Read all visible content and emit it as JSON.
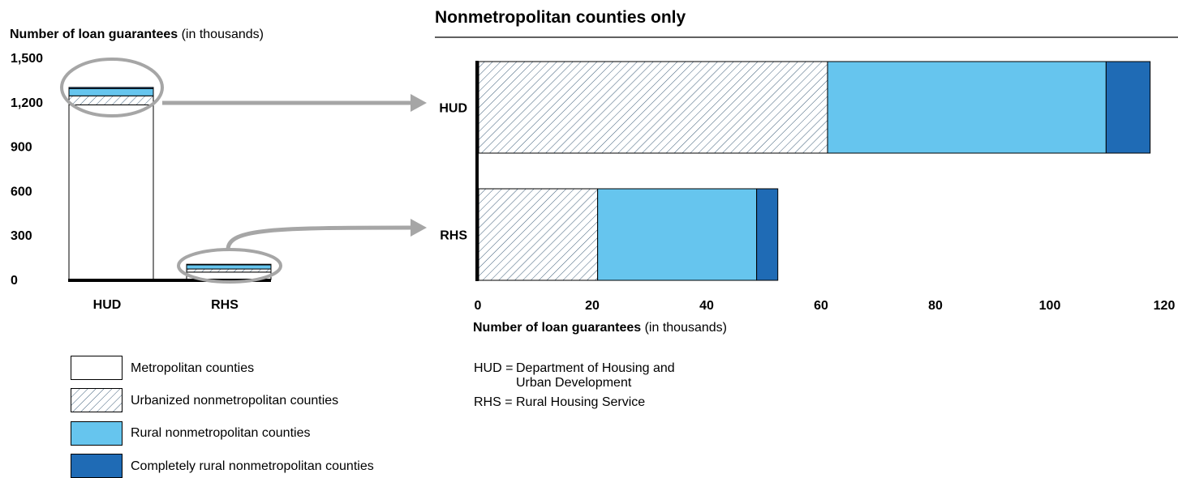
{
  "colors": {
    "metropolitan": "#ffffff",
    "rural": "#66c5ee",
    "completely_rural": "#1f6bb5",
    "highlight_ellipse": "#a6a6a6",
    "hatch_line": "#3f5f7a"
  },
  "left_chart": {
    "ylabel_bold": "Number of loan guarantees",
    "ylabel_rest": " (in thousands)"
  },
  "right_chart": {
    "title": "Nonmetropolitan counties only",
    "xlabel_bold": "Number of loan guarantees",
    "xlabel_rest": " (in thousands)"
  },
  "chart_data": [
    {
      "type": "bar",
      "stacked": true,
      "orientation": "vertical",
      "categories": [
        "HUD",
        "RHS"
      ],
      "series": [
        {
          "name": "Metropolitan counties",
          "values": [
            1180,
            50
          ]
        },
        {
          "name": "Urbanized nonmetropolitan counties",
          "values": [
            61,
            21
          ]
        },
        {
          "name": "Rural nonmetropolitan counties",
          "values": [
            49,
            28
          ]
        },
        {
          "name": "Completely rural nonmetropolitan counties",
          "values": [
            8,
            4
          ]
        }
      ],
      "ylim": [
        0,
        1500
      ],
      "yticks": [
        "0",
        "300",
        "600",
        "900",
        "1,200",
        "1,500"
      ],
      "ytick_values": [
        0,
        300,
        600,
        900,
        1200,
        1500
      ]
    },
    {
      "type": "bar",
      "stacked": true,
      "orientation": "horizontal",
      "categories": [
        "HUD",
        "RHS"
      ],
      "series": [
        {
          "name": "Urbanized nonmetropolitan counties",
          "values": [
            61,
            20.8
          ]
        },
        {
          "name": "Rural nonmetropolitan counties",
          "values": [
            48.7,
            27.8
          ]
        },
        {
          "name": "Completely rural nonmetropolitan counties",
          "values": [
            7.7,
            3.7
          ]
        }
      ],
      "xlim": [
        0,
        120
      ],
      "xticks": [
        "0",
        "20",
        "40",
        "60",
        "80",
        "100",
        "120"
      ],
      "xtick_values": [
        0,
        20,
        40,
        60,
        80,
        100,
        120
      ]
    }
  ],
  "legend": [
    {
      "label": "Metropolitan counties",
      "fill": "white"
    },
    {
      "label": "Urbanized nonmetropolitan counties",
      "fill": "hatch"
    },
    {
      "label": "Rural nonmetropolitan counties",
      "fill": "#66c5ee"
    },
    {
      "label": "Completely rural nonmetropolitan counties",
      "fill": "#1f6bb5"
    }
  ],
  "abbreviations": [
    {
      "key": "HUD =",
      "line1": "Department of Housing and",
      "line2": "Urban Development"
    },
    {
      "key": "RHS =",
      "line1": "Rural Housing Service",
      "line2": ""
    }
  ]
}
